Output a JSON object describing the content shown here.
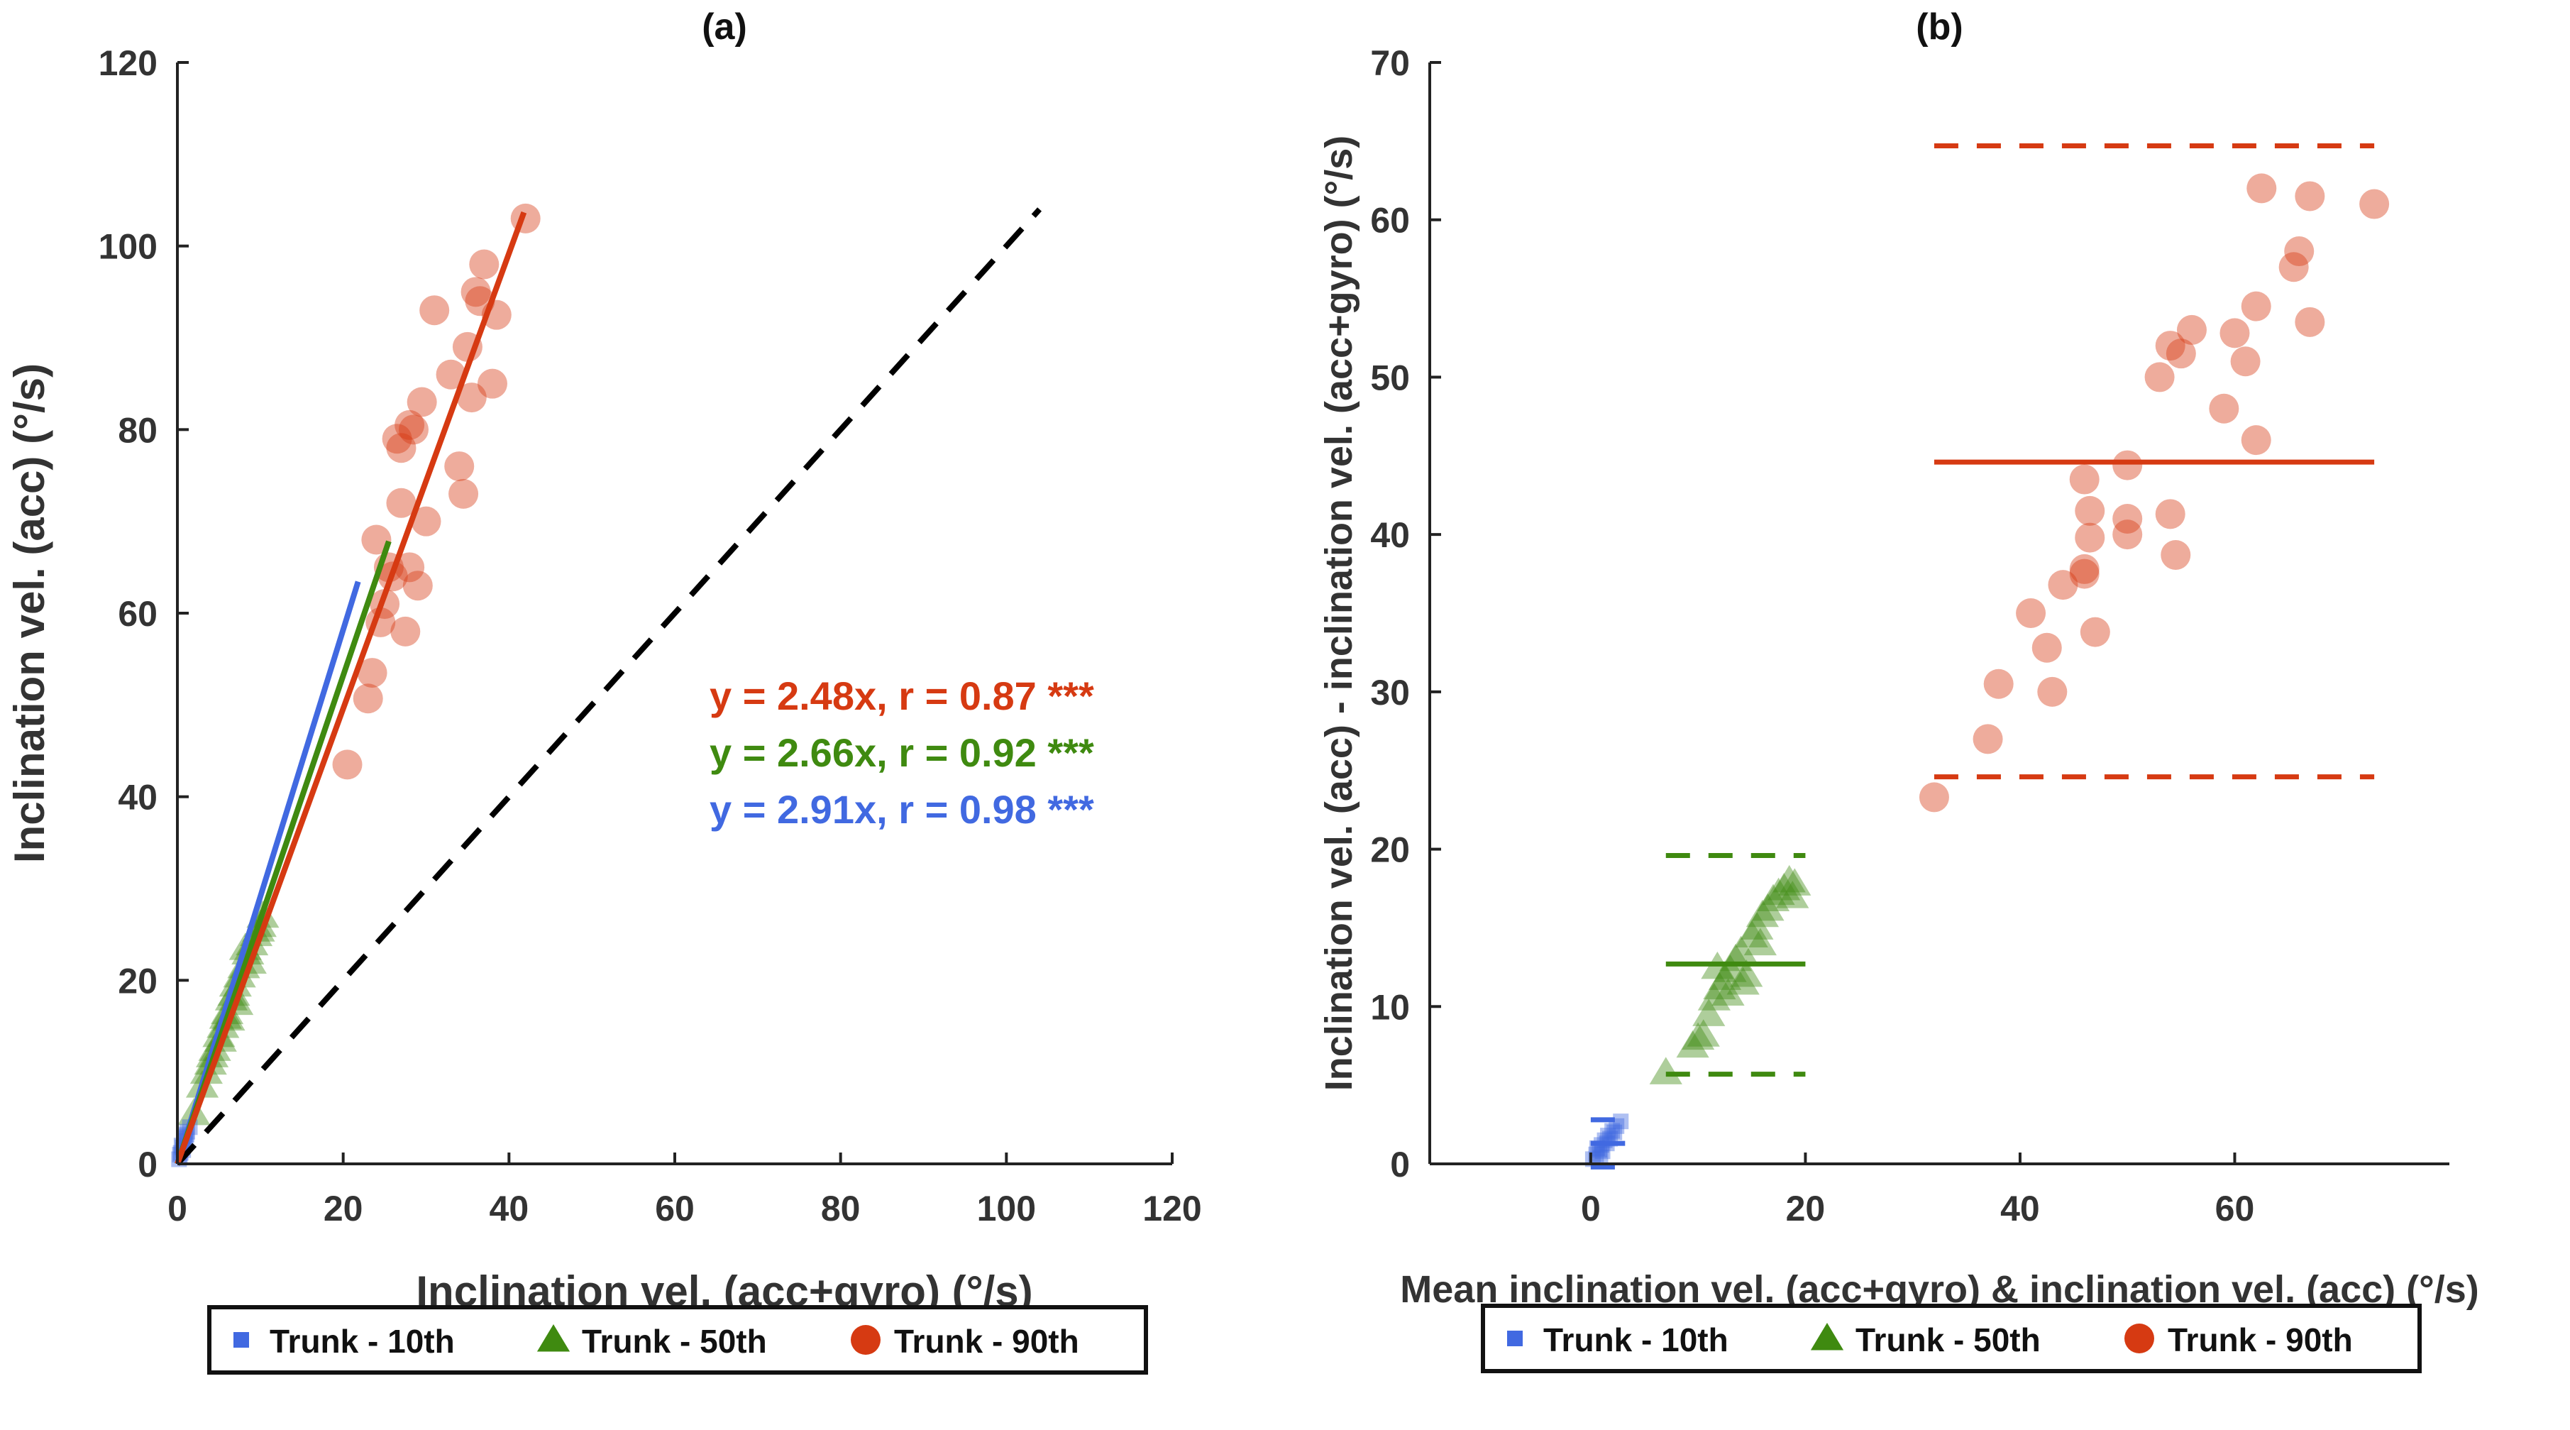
{
  "colors": {
    "blue": "#4169e1",
    "green": "#3f8a10",
    "red": "#d63a12",
    "axis": "#222222",
    "identity": "#000000"
  },
  "chart_data": [
    {
      "type": "scatter",
      "title": "(a)",
      "xlabel": "Inclination vel. (acc+gyro) (°/s)",
      "ylabel": "Inclination vel. (acc) (°/s)",
      "xlim": [
        0,
        120
      ],
      "ylim": [
        0,
        120
      ],
      "xticks": [
        "0",
        "20",
        "40",
        "60",
        "80",
        "100",
        "120"
      ],
      "yticks": [
        "0",
        "20",
        "40",
        "60",
        "80",
        "100",
        "120"
      ],
      "identity_line": {
        "style": "dashed",
        "x": [
          0,
          104
        ]
      },
      "series": [
        {
          "name": "Trunk - 10th",
          "marker": "square",
          "color": "#4169e1",
          "x": [
            0.2,
            0.4,
            0.6,
            0.8,
            1.0,
            1.2,
            0.5,
            0.9,
            1.5,
            0.3,
            0.7,
            1.1
          ],
          "y": [
            0.5,
            1.2,
            1.8,
            2.5,
            3.0,
            3.5,
            2.0,
            2.8,
            4.0,
            1.0,
            1.5,
            3.2
          ],
          "fit": {
            "slope": 2.91,
            "r": 0.98,
            "x_range": [
              0,
              21.8
            ]
          },
          "annotation": "y = 2.91x, r = 0.98 ***"
        },
        {
          "name": "Trunk - 50th",
          "marker": "triangle",
          "color": "#3f8a10",
          "x": [
            2.0,
            3.0,
            3.5,
            4.0,
            4.5,
            5.0,
            5.5,
            6.0,
            6.5,
            7.0,
            7.5,
            8.0,
            8.5,
            9.0,
            9.5,
            10.0,
            10.3,
            5.2,
            6.8,
            8.8,
            4.2,
            7.2,
            9.8,
            6.2,
            5.8,
            8.2
          ],
          "y": [
            5.5,
            8.5,
            10.0,
            11.0,
            12.5,
            14.0,
            15.0,
            16.5,
            18.0,
            19.5,
            20.5,
            21.5,
            23.0,
            24.0,
            25.0,
            26.0,
            27.0,
            13.5,
            18.5,
            22.0,
            11.8,
            17.5,
            25.5,
            15.8,
            16.0,
            23.5
          ],
          "fit": {
            "slope": 2.66,
            "r": 0.92,
            "x_range": [
              0,
              25.5
            ]
          },
          "annotation": "y = 2.66x, r = 0.92 ***"
        },
        {
          "name": "Trunk - 90th",
          "marker": "circle",
          "color": "#d63a12",
          "x": [
            20.5,
            23.0,
            23.5,
            24.0,
            24.5,
            25.0,
            25.5,
            26.0,
            26.5,
            27.0,
            27.5,
            28.0,
            28.5,
            29.0,
            29.5,
            30.0,
            31.0,
            33.0,
            34.0,
            34.5,
            35.0,
            35.5,
            36.0,
            36.5,
            37.0,
            38.0,
            38.5,
            42.0,
            27.0,
            28.0
          ],
          "y": [
            43.5,
            50.7,
            53.5,
            68.0,
            59.0,
            61.0,
            65.0,
            64.0,
            79.0,
            72.0,
            58.0,
            65.0,
            80.0,
            63.0,
            83.0,
            70.0,
            93.0,
            86.0,
            76.0,
            73.0,
            89.0,
            83.5,
            95.0,
            94.0,
            98.0,
            85.0,
            92.5,
            103.0,
            78.0,
            80.5
          ],
          "fit": {
            "slope": 2.48,
            "r": 0.87,
            "x_range": [
              0,
              41.8
            ]
          },
          "annotation": "y = 2.48x, r = 0.87 ***"
        }
      ],
      "legend": {
        "placement": "bottom",
        "entries": [
          "Trunk - 10th",
          "Trunk - 50th",
          "Trunk - 90th"
        ]
      }
    },
    {
      "type": "scatter",
      "title": "(b)",
      "xlabel": "Mean inclination vel. (acc+gyro) & inclination vel. (acc) (°/s)",
      "ylabel": "Inclination vel. (acc) - inclination vel. (acc+gyro) (°/s)",
      "xlim": [
        -15,
        80
      ],
      "ylim": [
        0,
        70
      ],
      "xticks": [
        "0",
        "20",
        "40",
        "60"
      ],
      "yticks": [
        "0",
        "10",
        "20",
        "30",
        "40",
        "50",
        "60",
        "70"
      ],
      "series": [
        {
          "name": "Trunk - 10th",
          "marker": "square",
          "color": "#4169e1",
          "x": [
            0.2,
            0.5,
            0.8,
            1.0,
            1.3,
            1.6,
            2.0,
            2.4,
            2.8,
            1.1,
            0.6,
            1.8,
            2.2,
            0.9,
            1.5
          ],
          "y": [
            0.3,
            0.6,
            0.9,
            1.2,
            1.5,
            1.8,
            2.1,
            2.4,
            2.7,
            0.8,
            1.0,
            1.6,
            2.0,
            0.4,
            1.3
          ],
          "mean": 1.3,
          "loa": [
            -0.2,
            2.8
          ],
          "loa_x_range": [
            0,
            3.2
          ]
        },
        {
          "name": "Trunk - 50th",
          "marker": "triangle",
          "color": "#3f8a10",
          "x": [
            7.0,
            9.5,
            10.5,
            11.0,
            11.5,
            12.0,
            12.5,
            13.0,
            13.5,
            14.0,
            14.5,
            15.0,
            15.5,
            16.0,
            16.5,
            17.0,
            17.5,
            18.0,
            18.5,
            19.0,
            10.0,
            12.8,
            15.8,
            18.8,
            11.8,
            14.2
          ],
          "y": [
            5.8,
            7.5,
            8.2,
            9.5,
            10.5,
            11.2,
            11.8,
            12.3,
            13.0,
            13.5,
            12.0,
            14.5,
            15.0,
            15.8,
            16.2,
            16.8,
            17.2,
            17.5,
            18.0,
            17.8,
            8.0,
            10.8,
            14.0,
            17.0,
            12.5,
            11.5
          ],
          "mean": 12.7,
          "loa": [
            5.7,
            19.6
          ],
          "loa_x_range": [
            7,
            20
          ]
        },
        {
          "name": "Trunk - 90th",
          "marker": "circle",
          "color": "#d63a12",
          "x": [
            32.0,
            37.0,
            38.0,
            41.0,
            42.5,
            43.0,
            44.0,
            46.0,
            46.0,
            46.0,
            46.5,
            46.5,
            47.0,
            50.0,
            50.0,
            50.0,
            53.0,
            54.0,
            55.0,
            54.5,
            56.0,
            54.0,
            59.0,
            60.0,
            61.0,
            62.0,
            62.0,
            65.5,
            66.0,
            67.0,
            73.0
          ],
          "y": [
            23.3,
            27.0,
            30.5,
            35.0,
            32.8,
            30.0,
            36.8,
            37.5,
            37.8,
            43.5,
            41.5,
            39.8,
            33.8,
            44.4,
            41.0,
            40.0,
            50.0,
            52.0,
            51.5,
            38.7,
            53.0,
            41.3,
            48.0,
            52.8,
            51.0,
            54.5,
            46.0,
            57.0,
            58.0,
            53.5,
            61.0
          ],
          "mean": 44.6,
          "loa": [
            24.6,
            64.7
          ],
          "loa_x_range": [
            32,
            73
          ]
        }
      ],
      "extra_points": [
        [
          62.5,
          62.0
        ],
        [
          67.0,
          61.5
        ]
      ],
      "legend": {
        "placement": "bottom",
        "entries": [
          "Trunk - 10th",
          "Trunk - 50th",
          "Trunk - 90th"
        ]
      }
    }
  ]
}
